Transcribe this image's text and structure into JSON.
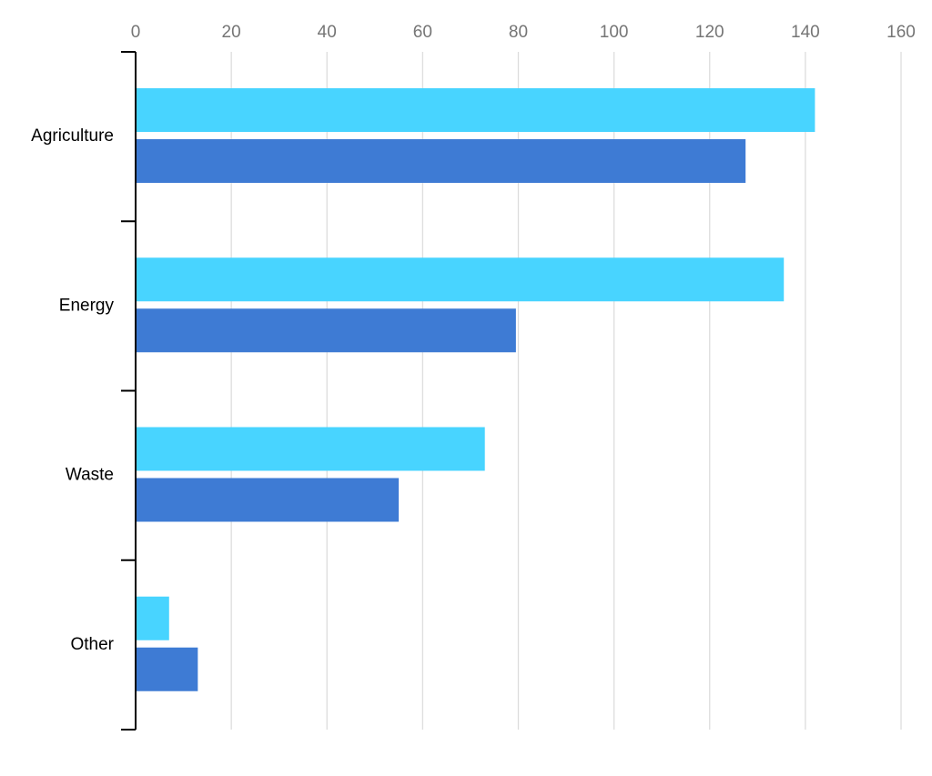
{
  "chart_data": {
    "type": "bar",
    "orientation": "horizontal",
    "categories": [
      "Agriculture",
      "Energy",
      "Waste",
      "Other"
    ],
    "series": [
      {
        "color": "#48d4ff",
        "values": [
          142,
          135.5,
          73,
          7
        ]
      },
      {
        "color": "#3e7bd4",
        "values": [
          127.5,
          79.5,
          55,
          13
        ]
      }
    ],
    "x_ticks": [
      0,
      20,
      40,
      60,
      80,
      100,
      120,
      140,
      160
    ],
    "xlim": [
      0,
      160
    ],
    "x_axis_position": "top",
    "grid": true,
    "title": "",
    "xlabel": "",
    "ylabel": ""
  }
}
